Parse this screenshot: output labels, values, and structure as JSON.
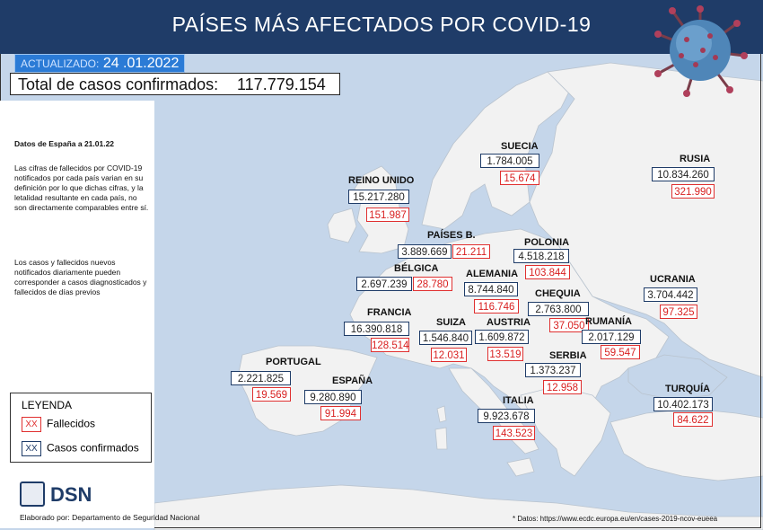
{
  "header": {
    "title": "PAÍSES MÁS AFECTADOS POR COVID-19",
    "updated_label": "ACTUALIZADO:",
    "updated_value": "24 .01.2022"
  },
  "total": {
    "label": "Total de casos confirmados:",
    "value": "117.779.154"
  },
  "notes": {
    "spain_date": "Datos de España a 21.01.22",
    "deaths_note": "Las cifras de fallecidos por COVID-19 notificados por cada país varian en su definición por lo que dichas cifras, y la letalidad resultante en cada país, no son directamente comparables entre sí.",
    "daily_note": "Los casos y fallecidos nuevos notificados diariamente pueden corresponder a casos diagnosticados y fallecidos de días previos"
  },
  "legend": {
    "title": "LEYENDA",
    "swatch": "XX",
    "deaths_label": "Fallecidos",
    "cases_label": "Casos confirmados",
    "deaths_color": "#e03030",
    "cases_color": "#1f3c68"
  },
  "footer": {
    "logo_text": "DSN",
    "elaborated": "Elaborado por: Departamento de Seguridad Nacional",
    "source": "* Datos: https://www.ecdc.europa.eu/en/cases-2019-ncov-eueea"
  },
  "countries": {
    "suecia": {
      "name": "SUECIA",
      "cases": "1.784.005",
      "deaths": "15.674"
    },
    "rusia": {
      "name": "RUSIA",
      "cases": "10.834.260",
      "deaths": "321.990"
    },
    "reino_unido": {
      "name": "REINO UNIDO",
      "cases": "15.217.280",
      "deaths": "151.987"
    },
    "paises_bajos": {
      "name": "PAÍSES B.",
      "cases": "3.889.669",
      "deaths": "21.211"
    },
    "polonia": {
      "name": "POLONIA",
      "cases": "4.518.218",
      "deaths": "103.844"
    },
    "belgica": {
      "name": "BÉLGICA",
      "cases": "2.697.239",
      "deaths": "28.780"
    },
    "alemania": {
      "name": "ALEMANIA",
      "cases": "8.744.840",
      "deaths": "116.746"
    },
    "ucrania": {
      "name": "UCRANIA",
      "cases": "3.704.442",
      "deaths": "97.325"
    },
    "chequia": {
      "name": "CHEQUIA",
      "cases": "2.763.800",
      "deaths": "37.050"
    },
    "francia": {
      "name": "FRANCIA",
      "cases": "16.390.818",
      "deaths": "128.514"
    },
    "suiza": {
      "name": "SUIZA",
      "cases": "1.546.840",
      "deaths": "12.031"
    },
    "austria": {
      "name": "AUSTRIA",
      "cases": "1.609.872",
      "deaths": "13.519"
    },
    "rumania": {
      "name": "RUMANÍA",
      "cases": "2.017.129",
      "deaths": "59.547"
    },
    "serbia": {
      "name": "SERBIA",
      "cases": "1.373.237",
      "deaths": "12.958"
    },
    "portugal": {
      "name": "PORTUGAL",
      "cases": "2.221.825",
      "deaths": "19.569"
    },
    "espana": {
      "name": "ESPAÑA",
      "cases": "9.280.890",
      "deaths": "91.994"
    },
    "italia": {
      "name": "ITALIA",
      "cases": "9.923.678",
      "deaths": "143.523"
    },
    "turquia": {
      "name": "TURQUÍA",
      "cases": "10.402.173",
      "deaths": "84.622"
    }
  }
}
